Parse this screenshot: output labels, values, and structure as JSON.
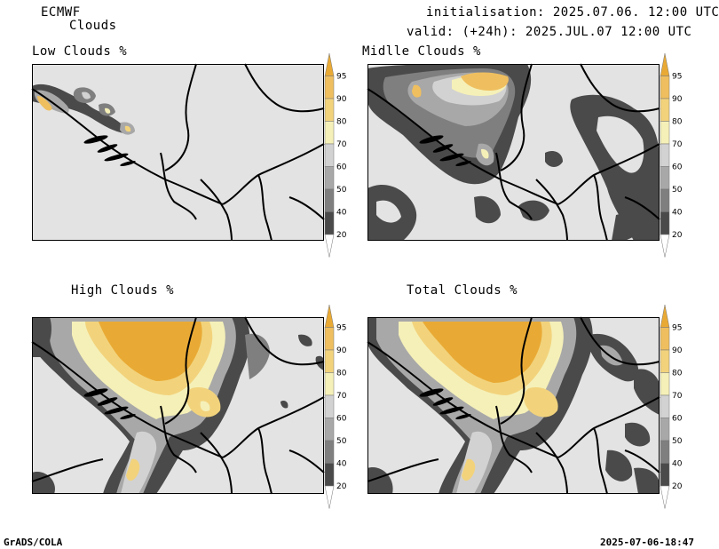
{
  "header": {
    "model": "ECMWF",
    "product": "Clouds",
    "initialisation": "initialisation: 2025.07.06. 12:00 UTC",
    "valid": "valid: (+24h): 2025.JUL.07 12:00 UTC"
  },
  "panels": [
    {
      "id": "low",
      "title": "Low Clouds %"
    },
    {
      "id": "middle",
      "title": "Midlle Clouds %"
    },
    {
      "id": "high",
      "title": "High Clouds %"
    },
    {
      "id": "total",
      "title": "Total Clouds %"
    }
  ],
  "colorbar": {
    "levels": [
      "20",
      "40",
      "50",
      "60",
      "70",
      "80",
      "90",
      "95"
    ],
    "colors": {
      "lt20": "#ffffff",
      "20_40": "#4a4a4a",
      "40_50": "#7f7f7f",
      "50_60": "#a8a8a8",
      "60_70": "#d2d2d2",
      "70_80": "#f5f0b8",
      "80_90": "#f2d37c",
      "90_95": "#efbf5f",
      "gt95": "#e9aa35"
    }
  },
  "colors": {
    "background_field": "#e3e3e3",
    "border": "#000000"
  },
  "footer": {
    "left": "GrADS/COLA",
    "right": "2025-07-06-18:47"
  }
}
